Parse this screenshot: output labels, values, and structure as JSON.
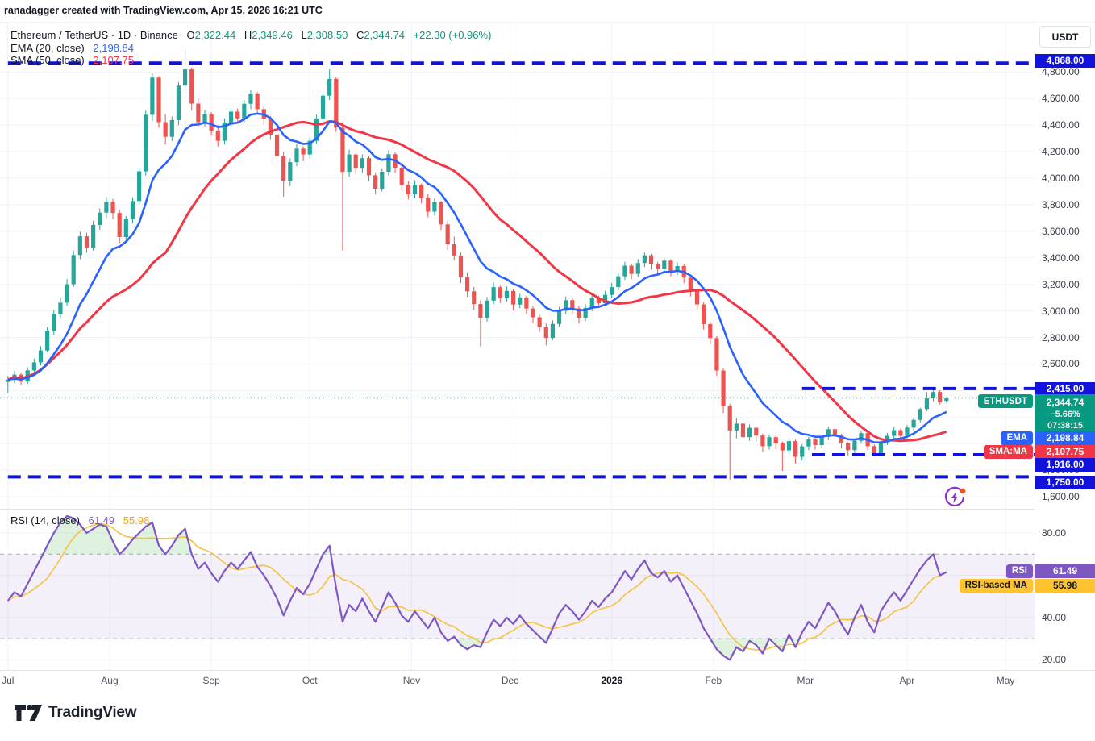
{
  "header": {
    "attribution": "ranadagger created with TradingView.com, Apr 15, 2026 16:21 UTC"
  },
  "symbol_legend": {
    "title": "Ethereum / TetherUS · 1D · Binance",
    "o_label": "O",
    "o": "2,322.44",
    "h_label": "H",
    "h": "2,349.46",
    "l_label": "L",
    "l": "2,308.50",
    "c_label": "C",
    "c": "2,344.74",
    "change": "+22.30 (+0.96%)"
  },
  "ema_legend": {
    "title": "EMA (20, close)",
    "value": "2,198.84"
  },
  "sma_legend": {
    "title": "SMA (50, close)",
    "value": "2,107.75"
  },
  "rsi_legend": {
    "title": "RSI (14, close)",
    "rsi_value": "61.49",
    "ma_value": "55.98"
  },
  "price_axis": {
    "currency_button": "USDT",
    "ticks": [
      4800,
      4600,
      4400,
      4200,
      4000,
      3800,
      3600,
      3400,
      3200,
      3000,
      2800,
      2600,
      2400,
      2200,
      2000,
      1800,
      1600
    ]
  },
  "rsi_axis": {
    "ticks": [
      80,
      60,
      40,
      20
    ]
  },
  "labels": {
    "level_4868": "4,868.00",
    "level_2415": "2,415.00",
    "level_1916": "1,916.00",
    "level_1750": "1,750.00",
    "ethusdt_tag": "ETHUSDT",
    "ethusdt_price": "2,344.74",
    "ethusdt_change": "−5.66%",
    "ethusdt_countdown": "07:38:15",
    "ema_tag": "EMA",
    "ema_price": "2,198.84",
    "sma_tag": "SMA:MA",
    "sma_price": "2,107.75",
    "rsi_tag": "RSI",
    "rsi_value": "61.49",
    "rsi_ma_tag": "RSI-based MA",
    "rsi_ma_value": "55.98"
  },
  "time_axis": {
    "months": [
      {
        "label": "Jul",
        "day": 0
      },
      {
        "label": "Aug",
        "day": 31
      },
      {
        "label": "Sep",
        "day": 62
      },
      {
        "label": "Oct",
        "day": 92
      },
      {
        "label": "Nov",
        "day": 123
      },
      {
        "label": "Dec",
        "day": 153
      },
      {
        "label": "2026",
        "day": 184,
        "bold": true
      },
      {
        "label": "Feb",
        "day": 215
      },
      {
        "label": "Mar",
        "day": 243
      },
      {
        "label": "Apr",
        "day": 274
      },
      {
        "label": "May",
        "day": 304
      }
    ]
  },
  "footer": {
    "logo_text": "TradingView"
  },
  "colors": {
    "up": "#26a69a",
    "down": "#ef5350",
    "ema": "#2962ff",
    "sma": "#f23645",
    "level_blue": "#1212dd",
    "current_price": "#089981",
    "rsi": "#7e57c2",
    "rsi_ma": "#f5c242",
    "rsi_badge": "#7e57c2",
    "rsi_ma_badge": "#fdc331",
    "teal_badge": "#089981",
    "grid": "#f0f3fa",
    "separator": "#e0e3eb",
    "band_line": "#a8abb5",
    "overbought_fill": "#4caf50"
  },
  "chart_data": {
    "type": "candlestick",
    "title": "Ethereum / TetherUS · 1D · Binance",
    "symbol": "ETHUSDT",
    "exchange": "Binance",
    "interval": "1D",
    "x_range": "Jul 2025 – May 2026",
    "price_axis_range": [
      1509,
      5173
    ],
    "rsi_axis_range": [
      15.2,
      90.3
    ],
    "rsi_bands": [
      30,
      70
    ],
    "grid": true,
    "legend_position": "top-left",
    "ohlc_current": {
      "open": 2322.44,
      "high": 2349.46,
      "low": 2308.5,
      "close": 2344.74,
      "change": 22.3,
      "change_pct": 0.96
    },
    "indicators": [
      {
        "name": "EMA",
        "params": "20, close",
        "value": 2198.84
      },
      {
        "name": "SMA",
        "params": "50, close",
        "value": 2107.75
      },
      {
        "name": "RSI",
        "params": "14, close",
        "value": 61.49,
        "ma_value": 55.98
      }
    ],
    "horizontal_levels": [
      {
        "price": 4868,
        "from_day": 0
      },
      {
        "price": 2415,
        "from_day": 242
      },
      {
        "price": 1916,
        "from_day": 245
      },
      {
        "price": 1750,
        "from_day": 0
      }
    ],
    "current_price_line": 2344.74,
    "sample_interval_days": 2,
    "start_date": "2025-07-01",
    "candles": [
      [
        2465,
        2510,
        2380,
        2482
      ],
      [
        2482,
        2548,
        2455,
        2520
      ],
      [
        2520,
        2535,
        2442,
        2468
      ],
      [
        2468,
        2575,
        2450,
        2552
      ],
      [
        2552,
        2640,
        2528,
        2612
      ],
      [
        2612,
        2735,
        2590,
        2702
      ],
      [
        2702,
        2880,
        2688,
        2851
      ],
      [
        2851,
        3005,
        2820,
        2978
      ],
      [
        2978,
        3098,
        2940,
        3062
      ],
      [
        3062,
        3240,
        3040,
        3201
      ],
      [
        3201,
        3455,
        3180,
        3421
      ],
      [
        3421,
        3598,
        3390,
        3562
      ],
      [
        3562,
        3590,
        3440,
        3478
      ],
      [
        3478,
        3680,
        3455,
        3648
      ],
      [
        3648,
        3772,
        3610,
        3741
      ],
      [
        3741,
        3860,
        3700,
        3822
      ],
      [
        3822,
        3845,
        3690,
        3738
      ],
      [
        3738,
        3760,
        3510,
        3557
      ],
      [
        3557,
        3715,
        3530,
        3692
      ],
      [
        3692,
        3855,
        3660,
        3828
      ],
      [
        3828,
        4080,
        3800,
        4052
      ],
      [
        4052,
        4510,
        4020,
        4478
      ],
      [
        4478,
        4790,
        4430,
        4758
      ],
      [
        4758,
        4770,
        4380,
        4422
      ],
      [
        4422,
        4480,
        4255,
        4312
      ],
      [
        4312,
        4465,
        4280,
        4438
      ],
      [
        4438,
        4725,
        4400,
        4698
      ],
      [
        4698,
        4990,
        4640,
        4820
      ],
      [
        4820,
        4835,
        4510,
        4562
      ],
      [
        4562,
        4600,
        4380,
        4422
      ],
      [
        4422,
        4515,
        4390,
        4482
      ],
      [
        4482,
        4498,
        4320,
        4358
      ],
      [
        4358,
        4400,
        4238,
        4282
      ],
      [
        4282,
        4450,
        4255,
        4419
      ],
      [
        4419,
        4530,
        4385,
        4502
      ],
      [
        4502,
        4525,
        4410,
        4451
      ],
      [
        4451,
        4590,
        4420,
        4561
      ],
      [
        4561,
        4662,
        4520,
        4638
      ],
      [
        4638,
        4650,
        4480,
        4521
      ],
      [
        4521,
        4540,
        4405,
        4450
      ],
      [
        4450,
        4468,
        4290,
        4329
      ],
      [
        4329,
        4360,
        4120,
        4168
      ],
      [
        4168,
        4200,
        3860,
        3982
      ],
      [
        3982,
        4150,
        3940,
        4121
      ],
      [
        4121,
        4258,
        4090,
        4223
      ],
      [
        4223,
        4240,
        4130,
        4179
      ],
      [
        4179,
        4310,
        4150,
        4282
      ],
      [
        4282,
        4480,
        4260,
        4451
      ],
      [
        4451,
        4648,
        4420,
        4622
      ],
      [
        4622,
        4820,
        4590,
        4748
      ],
      [
        4748,
        4760,
        4350,
        4381
      ],
      [
        4381,
        4420,
        3455,
        4048
      ],
      [
        4048,
        4215,
        4010,
        4179
      ],
      [
        4179,
        4190,
        4030,
        4078
      ],
      [
        4078,
        4180,
        4040,
        4151
      ],
      [
        4151,
        4165,
        3980,
        4022
      ],
      [
        4022,
        4040,
        3880,
        3921
      ],
      [
        3921,
        4075,
        3900,
        4049
      ],
      [
        4049,
        4210,
        4020,
        4181
      ],
      [
        4181,
        4195,
        4040,
        4079
      ],
      [
        4079,
        4090,
        3910,
        3952
      ],
      [
        3952,
        3980,
        3840,
        3878
      ],
      [
        3878,
        3985,
        3850,
        3948
      ],
      [
        3948,
        3960,
        3810,
        3851
      ],
      [
        3851,
        3880,
        3705,
        3748
      ],
      [
        3748,
        3850,
        3720,
        3819
      ],
      [
        3819,
        3830,
        3610,
        3652
      ],
      [
        3652,
        3680,
        3460,
        3502
      ],
      [
        3502,
        3560,
        3380,
        3418
      ],
      [
        3418,
        3440,
        3210,
        3252
      ],
      [
        3252,
        3290,
        3105,
        3148
      ],
      [
        3148,
        3180,
        3010,
        3052
      ],
      [
        3052,
        3080,
        2734,
        2948
      ],
      [
        2948,
        3105,
        2920,
        3078
      ],
      [
        3078,
        3215,
        3050,
        3179
      ],
      [
        3179,
        3190,
        3060,
        3098
      ],
      [
        3098,
        3185,
        3070,
        3151
      ],
      [
        3151,
        3165,
        3005,
        3048
      ],
      [
        3048,
        3130,
        3020,
        3102
      ],
      [
        3102,
        3115,
        2980,
        3018
      ],
      [
        3018,
        3035,
        2910,
        2952
      ],
      [
        2952,
        2970,
        2840,
        2878
      ],
      [
        2878,
        2905,
        2740,
        2796
      ],
      [
        2796,
        2930,
        2780,
        2902
      ],
      [
        2902,
        3030,
        2880,
        3001
      ],
      [
        3001,
        3110,
        2975,
        3081
      ],
      [
        3081,
        3095,
        2980,
        3019
      ],
      [
        3019,
        3040,
        2905,
        2949
      ],
      [
        2949,
        3050,
        2925,
        3022
      ],
      [
        3022,
        3130,
        3000,
        3099
      ],
      [
        3099,
        3115,
        3020,
        3058
      ],
      [
        3058,
        3150,
        3035,
        3121
      ],
      [
        3121,
        3210,
        3095,
        3179
      ],
      [
        3179,
        3290,
        3155,
        3261
      ],
      [
        3261,
        3370,
        3235,
        3341
      ],
      [
        3341,
        3355,
        3240,
        3279
      ],
      [
        3279,
        3390,
        3255,
        3361
      ],
      [
        3361,
        3440,
        3330,
        3419
      ],
      [
        3419,
        3430,
        3310,
        3351
      ],
      [
        3351,
        3370,
        3280,
        3318
      ],
      [
        3318,
        3400,
        3295,
        3379
      ],
      [
        3379,
        3390,
        3260,
        3299
      ],
      [
        3299,
        3365,
        3270,
        3338
      ],
      [
        3338,
        3350,
        3210,
        3251
      ],
      [
        3251,
        3270,
        3110,
        3152
      ],
      [
        3152,
        3170,
        3010,
        3049
      ],
      [
        3049,
        3065,
        2860,
        2901
      ],
      [
        2901,
        2920,
        2750,
        2795
      ],
      [
        2795,
        2810,
        2510,
        2551
      ],
      [
        2551,
        2570,
        2230,
        2281
      ],
      [
        2281,
        2300,
        1728,
        2099
      ],
      [
        2099,
        2190,
        2040,
        2151
      ],
      [
        2151,
        2160,
        2000,
        2049
      ],
      [
        2049,
        2145,
        2020,
        2119
      ],
      [
        2119,
        2130,
        2015,
        2061
      ],
      [
        2061,
        2075,
        1940,
        1981
      ],
      [
        1981,
        2070,
        1955,
        2049
      ],
      [
        2049,
        2060,
        1960,
        2001
      ],
      [
        2001,
        2015,
        1795,
        1949
      ],
      [
        1949,
        2040,
        1920,
        2019
      ],
      [
        2019,
        2030,
        1850,
        1901
      ],
      [
        1901,
        1995,
        1875,
        1979
      ],
      [
        1979,
        2050,
        1950,
        2031
      ],
      [
        2031,
        2042,
        1955,
        1989
      ],
      [
        1989,
        2070,
        1965,
        2051
      ],
      [
        2051,
        2130,
        2025,
        2109
      ],
      [
        2109,
        2120,
        2030,
        2061
      ],
      [
        2061,
        2075,
        1965,
        2001
      ],
      [
        2001,
        2012,
        1910,
        1951
      ],
      [
        1951,
        2040,
        1930,
        2021
      ],
      [
        2021,
        2095,
        1998,
        2079
      ],
      [
        2079,
        2090,
        1950,
        1981
      ],
      [
        1981,
        1995,
        1908,
        1921
      ],
      [
        1921,
        2025,
        1905,
        2009
      ],
      [
        2009,
        2080,
        1990,
        2059
      ],
      [
        2059,
        2125,
        2040,
        2101
      ],
      [
        2101,
        2112,
        2030,
        2059
      ],
      [
        2059,
        2140,
        2040,
        2121
      ],
      [
        2121,
        2195,
        2100,
        2179
      ],
      [
        2179,
        2270,
        2160,
        2261
      ],
      [
        2261,
        2390,
        2245,
        2341
      ],
      [
        2341,
        2415,
        2320,
        2389
      ],
      [
        2389,
        2402,
        2295,
        2311
      ],
      [
        2322,
        2349,
        2308,
        2345
      ]
    ],
    "rsi": [
      48,
      52,
      50,
      56,
      62,
      68,
      74,
      80,
      85,
      88,
      87,
      84,
      80,
      82,
      84,
      83,
      76,
      70,
      73,
      77,
      80,
      83,
      85,
      74,
      70,
      74,
      79,
      82,
      70,
      63,
      66,
      61,
      57,
      62,
      66,
      63,
      67,
      71,
      64,
      60,
      55,
      49,
      41,
      48,
      54,
      51,
      56,
      63,
      70,
      74,
      54,
      38,
      46,
      43,
      49,
      43,
      38,
      45,
      52,
      47,
      41,
      38,
      43,
      39,
      35,
      40,
      33,
      29,
      31,
      27,
      25,
      27,
      26,
      33,
      39,
      36,
      40,
      37,
      41,
      37,
      34,
      31,
      28,
      35,
      42,
      46,
      43,
      39,
      43,
      48,
      45,
      49,
      52,
      57,
      62,
      58,
      63,
      67,
      61,
      59,
      62,
      57,
      60,
      54,
      48,
      42,
      35,
      30,
      25,
      22,
      20,
      26,
      24,
      29,
      27,
      23,
      30,
      27,
      24,
      32,
      26,
      33,
      38,
      35,
      41,
      47,
      43,
      37,
      32,
      40,
      46,
      38,
      33,
      43,
      48,
      52,
      48,
      53,
      58,
      63,
      67,
      70,
      60,
      61.49
    ]
  }
}
